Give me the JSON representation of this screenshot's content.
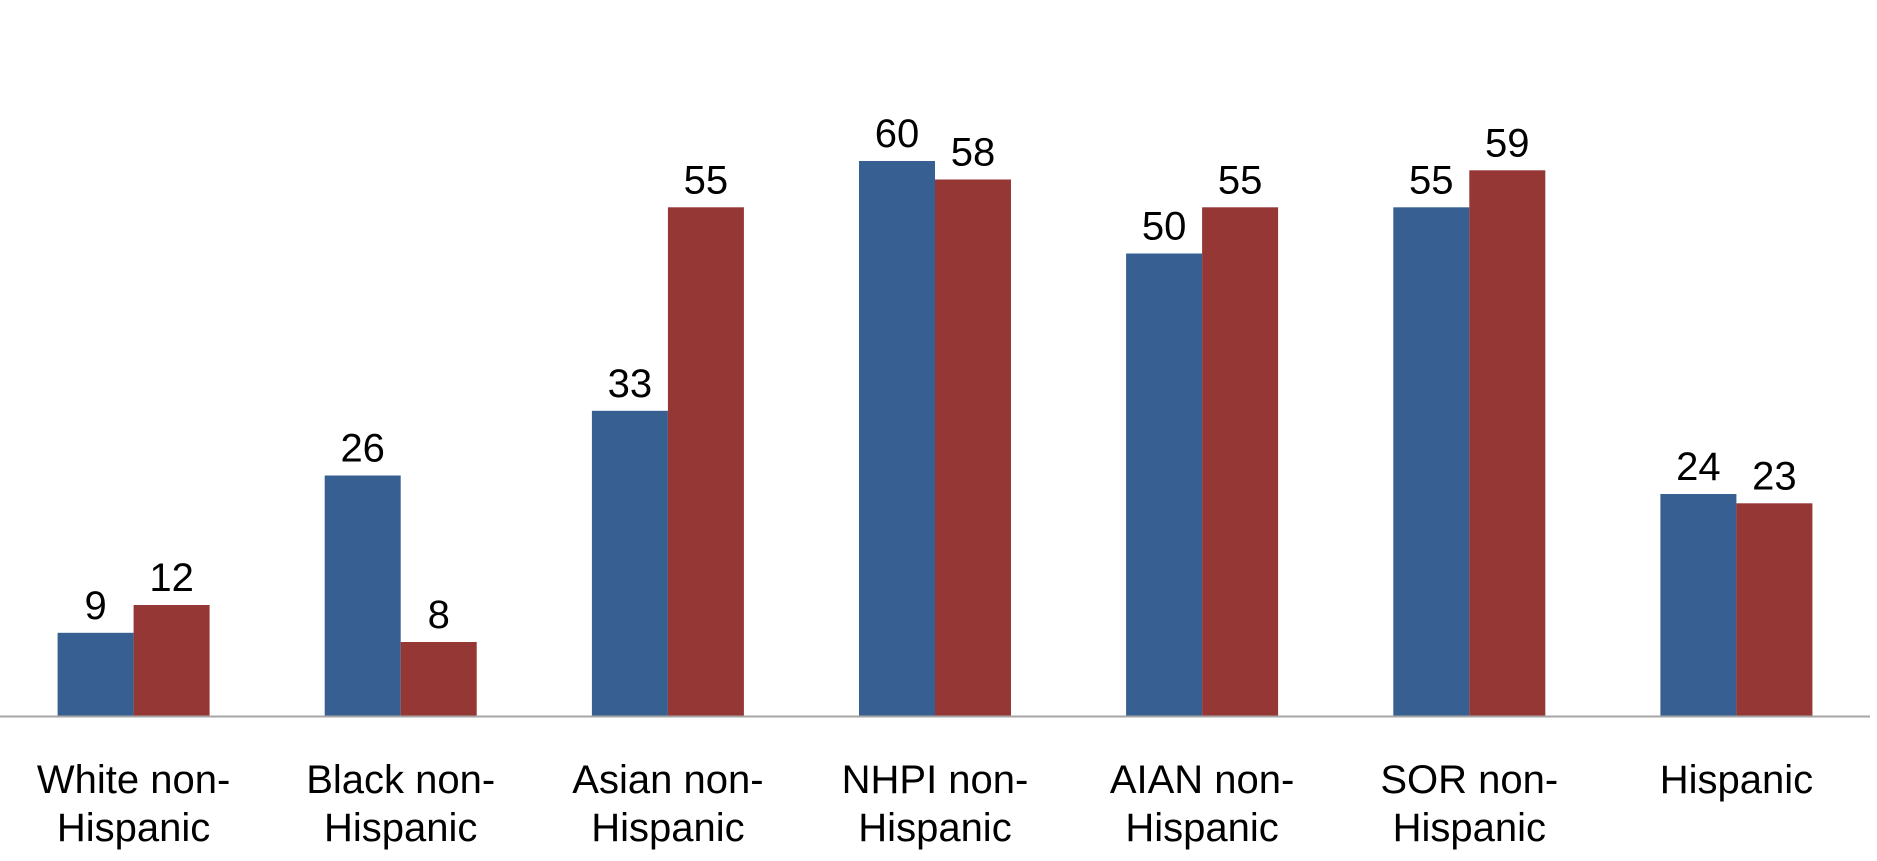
{
  "chart_data": {
    "type": "bar",
    "title": "",
    "xlabel": "",
    "ylabel": "",
    "categories": [
      [
        "White non-",
        "Hispanic"
      ],
      [
        "Black non-",
        "Hispanic"
      ],
      [
        "Asian non-",
        "Hispanic"
      ],
      [
        "NHPI non-",
        "Hispanic"
      ],
      [
        "AIAN non-",
        "Hispanic"
      ],
      [
        "SOR non-",
        "Hispanic"
      ],
      [
        "Hispanic"
      ]
    ],
    "series": [
      {
        "color": "#375f91",
        "values": [
          9,
          26,
          33,
          60,
          50,
          55,
          24
        ]
      },
      {
        "color": "#953735",
        "values": [
          12,
          8,
          55,
          58,
          55,
          59,
          23
        ]
      }
    ],
    "ylim": [
      0,
      65
    ],
    "grid": false,
    "legend": "none",
    "data_labels": true,
    "axis_color": "#a6a6a6"
  }
}
